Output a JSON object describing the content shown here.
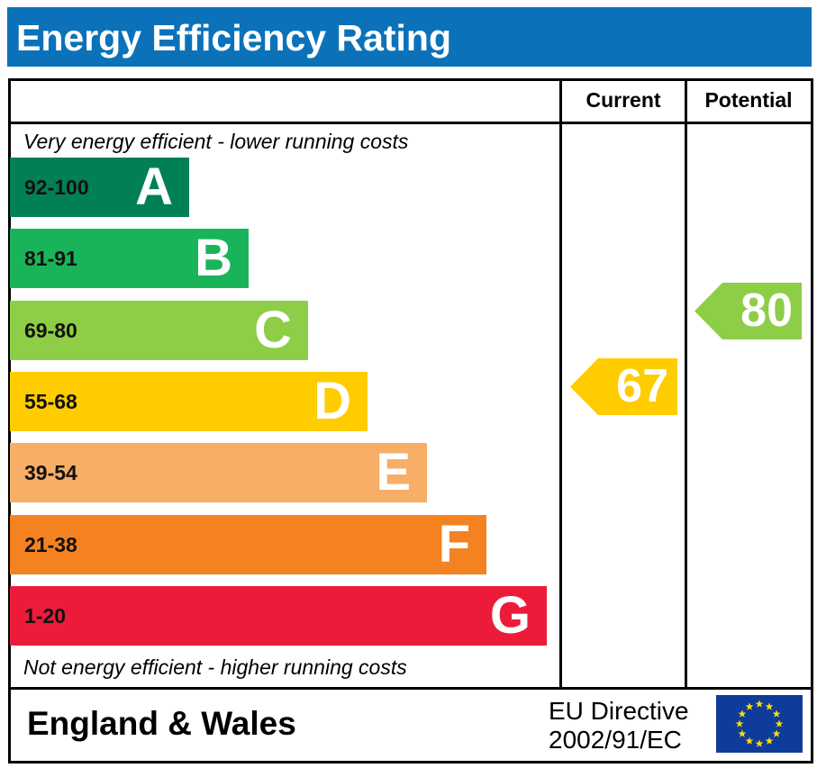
{
  "title": "Energy Efficiency Rating",
  "columns": {
    "current": "Current",
    "potential": "Potential"
  },
  "top_note": "Very energy efficient - lower running costs",
  "bottom_note": "Not energy efficient - higher running costs",
  "footer": {
    "country": "England & Wales",
    "directive_line1": "EU Directive",
    "directive_line2": "2002/91/EC",
    "flag_icon": "eu-flag-icon"
  },
  "chart_data": {
    "type": "bar",
    "title": "Energy Efficiency Rating",
    "bands": [
      {
        "letter": "A",
        "range": "92-100",
        "color": "#008054"
      },
      {
        "letter": "B",
        "range": "81-91",
        "color": "#19b459"
      },
      {
        "letter": "C",
        "range": "69-80",
        "color": "#8dce46"
      },
      {
        "letter": "D",
        "range": "55-68",
        "color": "#ffcc00"
      },
      {
        "letter": "E",
        "range": "39-54",
        "color": "#f7ae67"
      },
      {
        "letter": "F",
        "range": "21-38",
        "color": "#f58220"
      },
      {
        "letter": "G",
        "range": "1-20",
        "color": "#ed1b3a"
      }
    ],
    "current": {
      "value": 67,
      "band": "D",
      "color": "#ffcc00"
    },
    "potential": {
      "value": 80,
      "band": "C",
      "color": "#8dce46"
    }
  }
}
